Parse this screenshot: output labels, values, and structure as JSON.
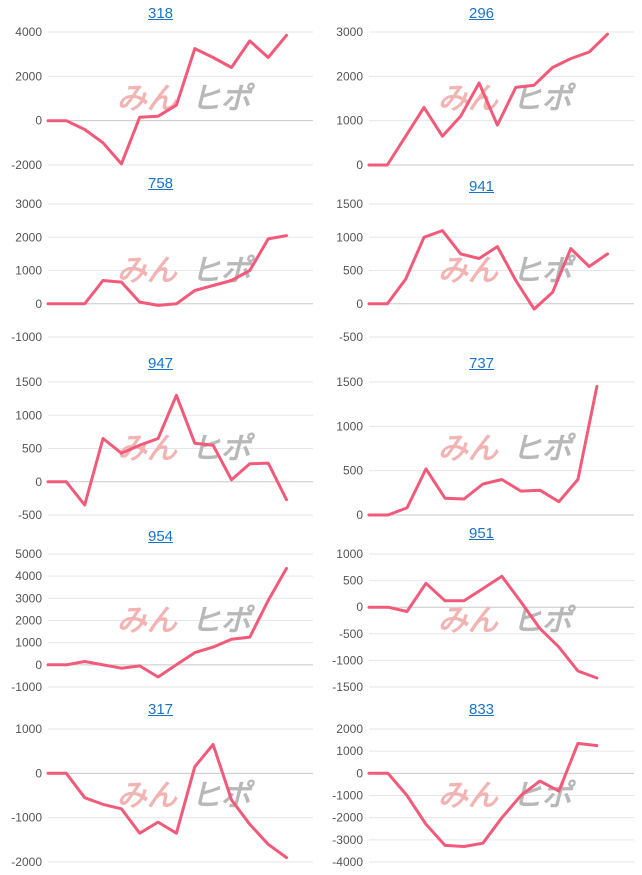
{
  "watermark": {
    "part_a": "みん",
    "part_b": "ヒポ"
  },
  "colors": {
    "line": "#f25a7a",
    "grid": "#e6e6e6",
    "axis": "#c8c8c8",
    "title": "#1a73c8"
  },
  "chart_data": [
    {
      "type": "line",
      "title": "318",
      "yticks": [
        -2000,
        0,
        2000,
        4000
      ],
      "ylim": [
        -2000,
        4000
      ],
      "values": [
        0,
        0,
        -400,
        -1000,
        -1950,
        150,
        200,
        700,
        3250,
        2850,
        2400,
        3600,
        2850,
        3850
      ]
    },
    {
      "type": "line",
      "title": "296",
      "yticks": [
        0,
        1000,
        2000,
        3000
      ],
      "ylim": [
        0,
        3000
      ],
      "values": [
        0,
        0,
        650,
        1300,
        650,
        1100,
        1850,
        900,
        1750,
        1800,
        2200,
        2400,
        2550,
        2950
      ]
    },
    {
      "type": "line",
      "title": "758",
      "yticks": [
        -1000,
        0,
        1000,
        2000,
        3000
      ],
      "ylim": [
        -1000,
        3000
      ],
      "values": [
        0,
        0,
        0,
        700,
        650,
        50,
        -50,
        0,
        400,
        550,
        700,
        1000,
        1950,
        2050
      ]
    },
    {
      "type": "line",
      "title": "941",
      "yticks": [
        -500,
        0,
        500,
        1000,
        1500
      ],
      "ylim": [
        -500,
        1500
      ],
      "values": [
        0,
        0,
        370,
        1000,
        1100,
        750,
        680,
        860,
        350,
        -80,
        170,
        830,
        560,
        750
      ]
    },
    {
      "type": "line",
      "title": "947",
      "yticks": [
        -500,
        0,
        500,
        1000,
        1500
      ],
      "ylim": [
        -500,
        1500
      ],
      "values": [
        0,
        0,
        -350,
        650,
        430,
        550,
        650,
        1300,
        580,
        550,
        30,
        270,
        280,
        -270
      ]
    },
    {
      "type": "line",
      "title": "737",
      "yticks": [
        0,
        500,
        1000,
        1500
      ],
      "ylim": [
        0,
        1500
      ],
      "values": [
        0,
        0,
        80,
        520,
        190,
        180,
        350,
        400,
        270,
        280,
        150,
        400,
        1450
      ]
    },
    {
      "type": "line",
      "title": "954",
      "yticks": [
        -1000,
        0,
        1000,
        2000,
        3000,
        4000,
        5000
      ],
      "ylim": [
        -1000,
        5000
      ],
      "values": [
        0,
        0,
        150,
        0,
        -150,
        -50,
        -550,
        0,
        550,
        800,
        1150,
        1250,
        2900,
        4350
      ]
    },
    {
      "type": "line",
      "title": "951",
      "yticks": [
        -1500,
        -1000,
        -500,
        0,
        500,
        1000
      ],
      "ylim": [
        -1500,
        1000
      ],
      "values": [
        0,
        0,
        -80,
        450,
        120,
        120,
        350,
        580,
        100,
        -400,
        -750,
        -1200,
        -1330
      ]
    },
    {
      "type": "line",
      "title": "317",
      "yticks": [
        -2000,
        -1000,
        0,
        1000
      ],
      "ylim": [
        -2000,
        1000
      ],
      "values": [
        0,
        0,
        -550,
        -700,
        -800,
        -1350,
        -1100,
        -1350,
        150,
        650,
        -600,
        -1150,
        -1600,
        -1900
      ]
    },
    {
      "type": "line",
      "title": "833",
      "yticks": [
        -4000,
        -3000,
        -2000,
        -1000,
        0,
        1000,
        2000
      ],
      "ylim": [
        -4000,
        2000
      ],
      "values": [
        0,
        0,
        -1000,
        -2300,
        -3250,
        -3300,
        -3150,
        -2000,
        -1000,
        -350,
        -800,
        1350,
        1250
      ]
    }
  ]
}
